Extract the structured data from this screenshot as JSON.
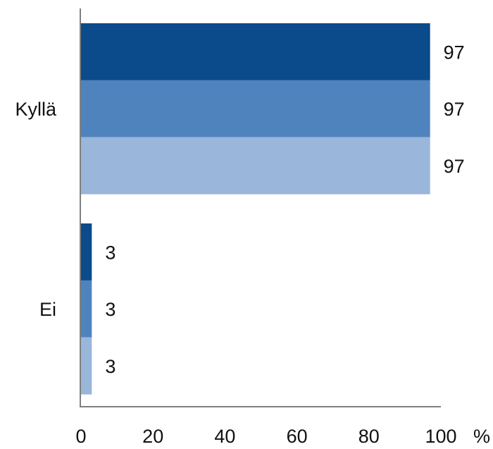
{
  "chart_data": {
    "type": "bar",
    "orientation": "horizontal",
    "categories": [
      "Kyllä",
      "Ei"
    ],
    "series": [
      {
        "values": [
          97,
          3
        ],
        "color": "#0B4A8B"
      },
      {
        "values": [
          97,
          3
        ],
        "color": "#4F83BE"
      },
      {
        "values": [
          97,
          3
        ],
        "color": "#9AB6DA"
      }
    ],
    "data_labels": [
      [
        "97",
        "97",
        "97"
      ],
      [
        "3",
        "3",
        "3"
      ]
    ],
    "x_ticks": [
      "0",
      "20",
      "40",
      "60",
      "80",
      "100"
    ],
    "x_unit": "%",
    "xlim": [
      0,
      100
    ],
    "grid": false,
    "legend": false
  }
}
